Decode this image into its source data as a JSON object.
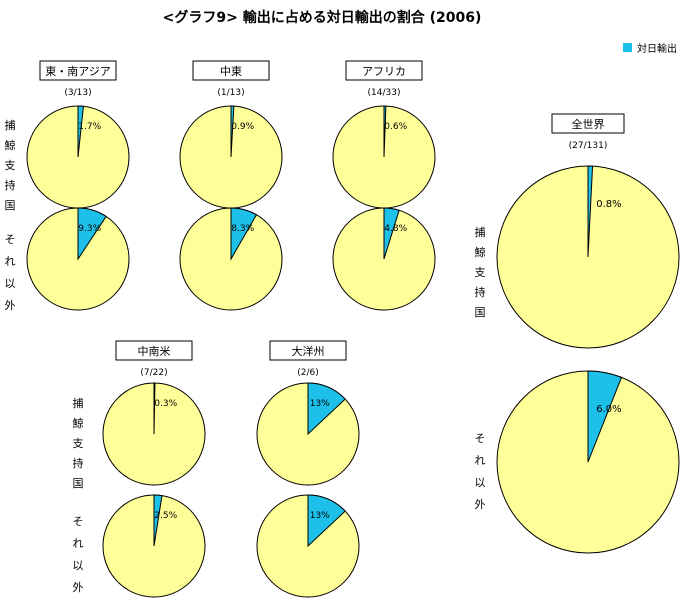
{
  "title": "<グラフ9> 輸出に占める対日輸出の割合 (2006)",
  "legend": {
    "label": "対日輸出",
    "position": "top-right"
  },
  "row_labels": {
    "whaling": "捕鯨支持国",
    "other": "それ以外"
  },
  "colors": {
    "japan_export": "#1cc0e8",
    "other_export": "#ffff99",
    "outline": "#000000"
  },
  "chart_data": {
    "type": "pie",
    "series_name": "対日輸出",
    "groups": [
      {
        "region": "東・南アジア",
        "count": "(3/13)",
        "whaling_pct": 1.7,
        "whaling_label": "1.7%",
        "other_pct": 9.3,
        "other_label": "9.3%"
      },
      {
        "region": "中東",
        "count": "(1/13)",
        "whaling_pct": 0.9,
        "whaling_label": "0.9%",
        "other_pct": 8.3,
        "other_label": "8.3%"
      },
      {
        "region": "アフリカ",
        "count": "(14/33)",
        "whaling_pct": 0.6,
        "whaling_label": "0.6%",
        "other_pct": 4.8,
        "other_label": "4.8%"
      },
      {
        "region": "中南米",
        "count": "(7/22)",
        "whaling_pct": 0.3,
        "whaling_label": "0.3%",
        "other_pct": 2.5,
        "other_label": "2.5%"
      },
      {
        "region": "大洋州",
        "count": "(2/6)",
        "whaling_pct": 13,
        "whaling_label": "13%",
        "other_pct": 13,
        "other_label": "13%"
      },
      {
        "region": "全世界",
        "count": "(27/131)",
        "whaling_pct": 0.8,
        "whaling_label": "0.8%",
        "other_pct": 6.0,
        "other_label": "6.0%"
      }
    ]
  }
}
